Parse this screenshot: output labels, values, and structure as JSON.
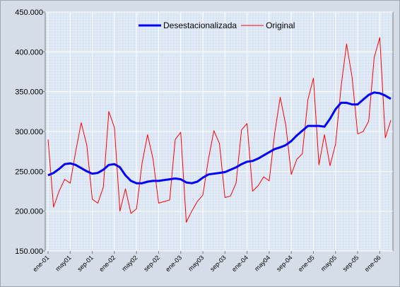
{
  "chart_data": {
    "type": "line",
    "categories": [
      "ene-01",
      null,
      null,
      null,
      "may01",
      null,
      null,
      null,
      "sep-01",
      null,
      null,
      null,
      "ene-02",
      null,
      null,
      null,
      "may02",
      null,
      null,
      null,
      "sep-02",
      null,
      null,
      null,
      "ene-03",
      null,
      null,
      null,
      "may03",
      null,
      null,
      null,
      "sep-03",
      null,
      null,
      null,
      "ene-04",
      null,
      null,
      null,
      "may04",
      null,
      null,
      null,
      "sep-04",
      null,
      null,
      null,
      "ene-05",
      null,
      null,
      null,
      "may05",
      null,
      null,
      null,
      "sep-05",
      null,
      null,
      null,
      "ene-06",
      null,
      null
    ],
    "series": [
      {
        "name": "Desestacionalizada",
        "color": "#0000ff",
        "values": [
          245000,
          248000,
          253000,
          259000,
          260000,
          258000,
          254000,
          250000,
          247000,
          248000,
          252000,
          258000,
          259000,
          255000,
          245000,
          238000,
          235000,
          235000,
          237000,
          238000,
          238000,
          239000,
          240000,
          241000,
          240000,
          236000,
          235000,
          237000,
          242000,
          246000,
          247000,
          248000,
          249000,
          252000,
          255000,
          259000,
          262000,
          263000,
          266000,
          270000,
          274000,
          278000,
          280000,
          283000,
          288000,
          295000,
          301000,
          307000,
          307000,
          307000,
          306000,
          316000,
          328000,
          336000,
          336000,
          334000,
          334000,
          340000,
          346000,
          349000,
          348000,
          345000,
          341000
        ]
      },
      {
        "name": "Original",
        "color": "#ff0000",
        "values": [
          290000,
          205000,
          225000,
          240000,
          235000,
          275000,
          311000,
          283000,
          215000,
          210000,
          230000,
          325000,
          305000,
          200000,
          228000,
          197000,
          203000,
          260000,
          296000,
          265000,
          210000,
          212000,
          214000,
          290000,
          299000,
          186000,
          200000,
          212000,
          220000,
          265000,
          301000,
          285000,
          217000,
          219000,
          235000,
          302000,
          310000,
          225000,
          232000,
          243000,
          238000,
          298000,
          343000,
          308000,
          246000,
          265000,
          272000,
          340000,
          367000,
          258000,
          296000,
          257000,
          284000,
          356000,
          410000,
          368000,
          297000,
          300000,
          313000,
          393000,
          418000,
          292000,
          314000
        ]
      }
    ],
    "ylim": [
      150000,
      450000
    ],
    "yticks": [
      {
        "value": 150000,
        "label": "150.000"
      },
      {
        "value": 200000,
        "label": "200.000"
      },
      {
        "value": 250000,
        "label": "250.000"
      },
      {
        "value": 300000,
        "label": "300.000"
      },
      {
        "value": 350000,
        "label": "350.000"
      },
      {
        "value": 400000,
        "label": "400.000"
      },
      {
        "value": 450000,
        "label": "450.000"
      }
    ],
    "grid": true,
    "legend": "top"
  }
}
